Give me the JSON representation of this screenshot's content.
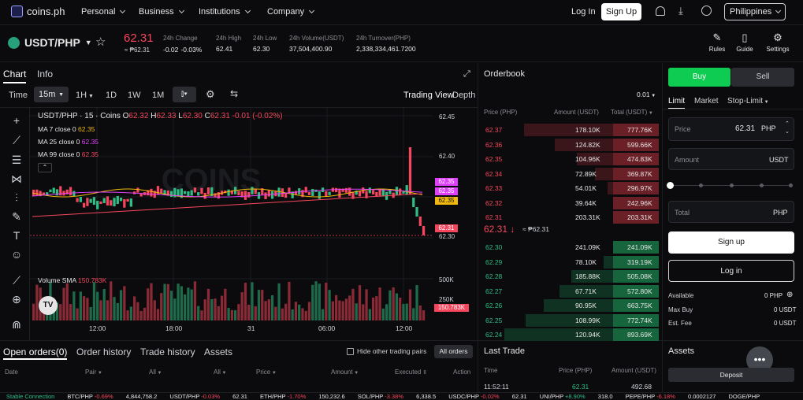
{
  "nav": {
    "logo": "coins.ph",
    "items": [
      "Personal",
      "Business",
      "Institutions",
      "Company"
    ],
    "login": "Log In",
    "signup": "Sign Up",
    "region": "Philippines"
  },
  "ticker": {
    "pair": "USDT/PHP",
    "price": "62.31",
    "price_sub": "≈ ₱62.31",
    "stats": [
      {
        "label": "24h Change",
        "value": "-0.02",
        "value2": "-0.03%"
      },
      {
        "label": "24h High",
        "value": "62.41"
      },
      {
        "label": "24h Low",
        "value": "62.30"
      },
      {
        "label": "24h Volume(USDT)",
        "value": "37,504,400.90"
      },
      {
        "label": "24h Turnover(PHP)",
        "value": "2,338,334,461.7200"
      }
    ],
    "tools": [
      "Rules",
      "Guide",
      "Settings"
    ]
  },
  "chart_tabs": {
    "chart": "Chart",
    "info": "Info"
  },
  "timebar": {
    "time": "Time",
    "selected": "15m",
    "h1": "1H",
    "d1": "1D",
    "w1": "1W",
    "m1": "1M",
    "trading_view": "Trading View",
    "depth": "Depth"
  },
  "legend": {
    "title": "USDT/PHP · 15 · Coins",
    "o_label": "O",
    "o": "62.32",
    "h_label": "H",
    "h": "62.33",
    "l_label": "L",
    "l": "62.30",
    "c_label": "C",
    "c": "62.31",
    "chg": "-0.01 (-0.02%)",
    "ma7": "MA 7 close 0",
    "ma7v": "62.35",
    "ma25": "MA 25 close 0",
    "ma25v": "62.35",
    "ma99": "MA 99 close 0",
    "ma99v": "62.35",
    "volume": "Volume SMA",
    "volume_v": "150.783K",
    "watermark": "COINS"
  },
  "axis": {
    "y": [
      "62.45",
      "62.40",
      "62.30"
    ],
    "tags": [
      "62.35",
      "62.35",
      "62.35",
      "62.31"
    ],
    "tag_colors": [
      "#e040fb",
      "#e040fb",
      "#f0b90b",
      "#f6465d"
    ],
    "vol": [
      "500K",
      "250K"
    ],
    "vol_tag": "150.783K",
    "x": [
      "12:00",
      "18:00",
      "31",
      "06:00",
      "12:00"
    ]
  },
  "orderbook": {
    "title": "Orderbook",
    "precision": "0.01",
    "h_price": "Price (PHP)",
    "h_amount": "Amount (USDT)",
    "h_total": "Total (USDT)",
    "asks": [
      [
        "62.37",
        "178.10K",
        "777.76K"
      ],
      [
        "62.36",
        "124.82K",
        "599.66K"
      ],
      [
        "62.35",
        "104.96K",
        "474.83K"
      ],
      [
        "62.34",
        "72.89K",
        "369.87K"
      ],
      [
        "62.33",
        "54.01K",
        "296.97K"
      ],
      [
        "62.32",
        "39.64K",
        "242.96K"
      ],
      [
        "62.31",
        "203.31K",
        "203.31K"
      ]
    ],
    "mid": "62.31",
    "mid_arrow": "↓",
    "mid_sub": "≈ ₱62.31",
    "bids": [
      [
        "62.30",
        "241.09K",
        "241.09K"
      ],
      [
        "62.29",
        "78.10K",
        "319.19K"
      ],
      [
        "62.28",
        "185.88K",
        "505.08K"
      ],
      [
        "62.27",
        "67.71K",
        "572.80K"
      ],
      [
        "62.26",
        "90.95K",
        "663.75K"
      ],
      [
        "62.25",
        "108.99K",
        "772.74K"
      ],
      [
        "62.24",
        "120.94K",
        "893.69K"
      ]
    ]
  },
  "trade": {
    "buy": "Buy",
    "sell": "Sell",
    "limit": "Limit",
    "market": "Market",
    "stop": "Stop-Limit",
    "price_label": "Price",
    "price_value": "62.31",
    "price_unit": "PHP",
    "amount_label": "Amount",
    "amount_unit": "USDT",
    "total_label": "Total",
    "total_unit": "PHP",
    "signup": "Sign up",
    "login": "Log in",
    "available": "Available",
    "available_v": "0 PHP",
    "maxbuy": "Max Buy",
    "maxbuy_v": "0 USDT",
    "estfee": "Est. Fee",
    "estfee_v": "0 USDT",
    "assets": "Assets",
    "deposit": "Deposit"
  },
  "bottom": {
    "tabs": [
      "Open orders",
      "(0)",
      "Order history",
      "Trade history",
      "Assets"
    ],
    "hide": "Hide other trading pairs",
    "all_orders": "All orders",
    "cols": [
      "Date",
      "Pair",
      "All",
      "All",
      "Price",
      "Amount",
      "Executed",
      "Action"
    ]
  },
  "lasttrade": {
    "title": "Last Trade",
    "h_time": "Time",
    "h_price": "Price (PHP)",
    "h_amount": "Amount (USDT)",
    "time": "11:52:11",
    "price": "62.31",
    "amount": "492.68"
  },
  "footer": [
    "Stable Connection",
    "BTC/PHP -0.69% 4,844,758.2",
    "USDT/PHP -0.03% 62.31",
    "ETH/PHP -1.70% 150,232.6",
    "SOL/PHP -3.38% 6,338.5",
    "USDC/PHP -0.02% 62.31",
    "UNI/PHP +8.90% 318.0",
    "PEPE/PHP -6.18% 0.0002127",
    "DOGE/PHP"
  ]
}
